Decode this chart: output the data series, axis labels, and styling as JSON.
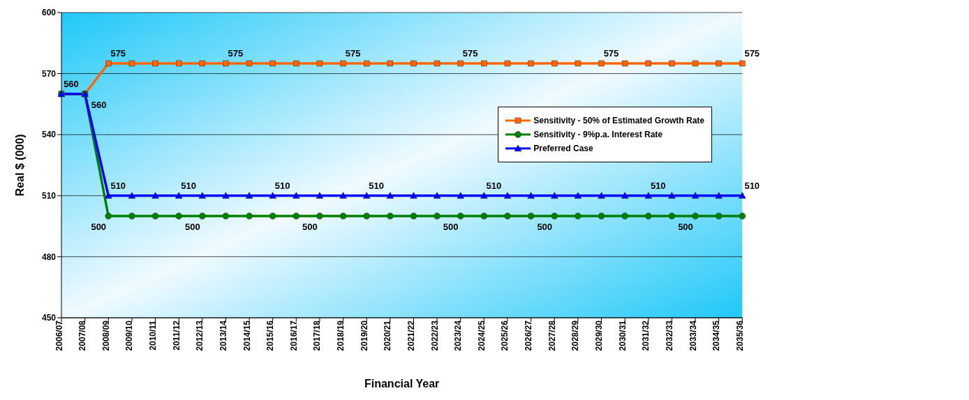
{
  "chart_data": {
    "type": "line",
    "xlabel": "Financial Year",
    "ylabel": "Real $ (000)",
    "categories": [
      "2006/07",
      "2007/08",
      "2008/09",
      "2009/10",
      "2010/11",
      "2011/12",
      "2012/13",
      "2013/14",
      "2014/15",
      "2015/16",
      "2016/17",
      "2017/18",
      "2018/19",
      "2019/20",
      "2020/21",
      "2021/22",
      "2022/23",
      "2023/24",
      "2024/25",
      "2025/26",
      "2026/27",
      "2027/28",
      "2028/29",
      "2029/30",
      "2030/31",
      "2031/32",
      "2032/33",
      "2033/34",
      "2034/35",
      "2035/36"
    ],
    "series": [
      {
        "name": "Sensitivity - 50% of Estimated Growth Rate",
        "color": "#ff6600",
        "marker": "square",
        "values": [
          560,
          560,
          575,
          575,
          575,
          575,
          575,
          575,
          575,
          575,
          575,
          575,
          575,
          575,
          575,
          575,
          575,
          575,
          575,
          575,
          575,
          575,
          575,
          575,
          575,
          575,
          575,
          575,
          575,
          575
        ],
        "value_labels": [
          null,
          "560",
          "575",
          null,
          null,
          null,
          null,
          "575",
          null,
          null,
          null,
          null,
          "575",
          null,
          null,
          null,
          null,
          "575",
          null,
          null,
          null,
          null,
          null,
          "575",
          null,
          null,
          null,
          null,
          null,
          "575"
        ]
      },
      {
        "name": "Sensitivity - 9%p.a. Interest Rate",
        "color": "#008000",
        "marker": "circle",
        "values": [
          560,
          560,
          500,
          500,
          500,
          500,
          500,
          500,
          500,
          500,
          500,
          500,
          500,
          500,
          500,
          500,
          500,
          500,
          500,
          500,
          500,
          500,
          500,
          500,
          500,
          500,
          500,
          500,
          500,
          500
        ],
        "value_labels": [
          null,
          null,
          "500",
          null,
          null,
          null,
          "500",
          null,
          null,
          null,
          null,
          "500",
          null,
          null,
          null,
          null,
          null,
          "500",
          null,
          null,
          null,
          "500",
          null,
          null,
          null,
          null,
          null,
          "500",
          null,
          null
        ]
      },
      {
        "name": "Preferred Case",
        "color": "#0000ff",
        "marker": "triangle",
        "values": [
          560,
          560,
          510,
          510,
          510,
          510,
          510,
          510,
          510,
          510,
          510,
          510,
          510,
          510,
          510,
          510,
          510,
          510,
          510,
          510,
          510,
          510,
          510,
          510,
          510,
          510,
          510,
          510,
          510,
          510
        ],
        "value_labels": [
          "560",
          null,
          "510",
          null,
          null,
          "510",
          null,
          null,
          null,
          "510",
          null,
          null,
          null,
          "510",
          null,
          null,
          null,
          null,
          "510",
          null,
          null,
          null,
          null,
          null,
          null,
          "510",
          null,
          null,
          null,
          "510"
        ]
      }
    ],
    "ylim": [
      450,
      600
    ],
    "yticks": [
      450,
      480,
      510,
      540,
      570,
      600
    ],
    "grid": "y",
    "legend": "top right",
    "line_style": "solid"
  }
}
